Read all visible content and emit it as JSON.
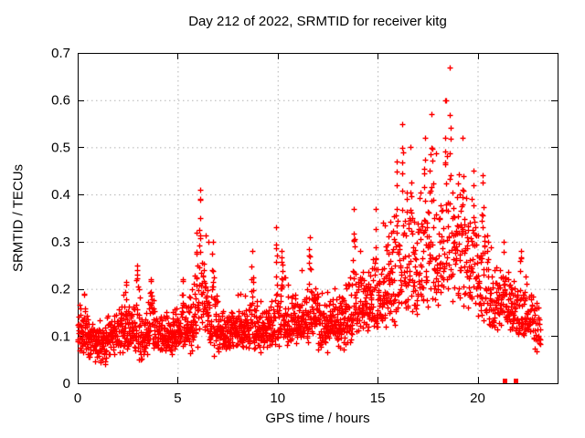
{
  "chart_data": {
    "type": "scatter",
    "title": "Day 212 of 2022, SRMTID for receiver kitg",
    "xlabel": "GPS time / hours",
    "ylabel": "SRMTID / TECUs",
    "xlim": [
      0,
      24
    ],
    "ylim": [
      0,
      0.7
    ],
    "xticks": [
      0,
      5,
      10,
      15,
      20
    ],
    "xtick_labels": [
      "0",
      "5",
      "10",
      "15",
      "20"
    ],
    "yticks": [
      0,
      0.1,
      0.2,
      0.3,
      0.4,
      0.5,
      0.6,
      0.7
    ],
    "ytick_labels": [
      "0",
      "0.1",
      "0.2",
      "0.3",
      "0.4",
      "0.5",
      "0.6",
      "0.7"
    ],
    "grid": "dotted, at every major tick, mirrored inward ticks on all four borders",
    "legend": "none",
    "marker": "plus",
    "point_color": "#ff0000",
    "grid_color": "#b4b4b4",
    "axis_color": "#000000",
    "background_color": "#ffffff",
    "x_data_range": [
      0,
      23.15
    ],
    "bands_schema": [
      "hour_start",
      "hour_end",
      "n_points",
      "y_low",
      "y_median",
      "y_high",
      "spike_pos_frac",
      "spike_y_max"
    ],
    "bands": [
      [
        0.0,
        0.5,
        58,
        0.05,
        0.1,
        0.18,
        null,
        null
      ],
      [
        0.5,
        1.0,
        58,
        0.04,
        0.09,
        0.14,
        null,
        null
      ],
      [
        1.0,
        1.5,
        58,
        0.025,
        0.08,
        0.13,
        null,
        null
      ],
      [
        1.5,
        2.0,
        58,
        0.05,
        0.1,
        0.16,
        null,
        null
      ],
      [
        2.0,
        2.5,
        58,
        0.06,
        0.11,
        0.18,
        0.8,
        0.215
      ],
      [
        2.5,
        3.0,
        58,
        0.06,
        0.11,
        0.19,
        0.95,
        0.25
      ],
      [
        3.0,
        3.5,
        58,
        0.04,
        0.1,
        0.18,
        null,
        null
      ],
      [
        3.5,
        4.0,
        58,
        0.06,
        0.11,
        0.19,
        0.3,
        0.22
      ],
      [
        4.0,
        4.5,
        58,
        0.06,
        0.1,
        0.16,
        null,
        null
      ],
      [
        4.5,
        5.0,
        58,
        0.05,
        0.1,
        0.17,
        null,
        null
      ],
      [
        5.0,
        5.5,
        58,
        0.07,
        0.11,
        0.18,
        0.5,
        0.22
      ],
      [
        5.5,
        6.0,
        58,
        0.05,
        0.12,
        0.22,
        0.9,
        0.32
      ],
      [
        6.0,
        6.5,
        55,
        0.1,
        0.16,
        0.3,
        0.25,
        0.41
      ],
      [
        6.5,
        7.0,
        55,
        0.05,
        0.13,
        0.24,
        0.5,
        0.3
      ],
      [
        7.0,
        7.5,
        58,
        0.06,
        0.11,
        0.16,
        null,
        null
      ],
      [
        7.5,
        8.0,
        58,
        0.06,
        0.11,
        0.16,
        null,
        null
      ],
      [
        8.0,
        8.5,
        58,
        0.07,
        0.11,
        0.17,
        null,
        null
      ],
      [
        8.5,
        9.0,
        58,
        0.07,
        0.12,
        0.19,
        0.45,
        0.28
      ],
      [
        9.0,
        9.5,
        58,
        0.06,
        0.11,
        0.16,
        null,
        null
      ],
      [
        9.5,
        10.0,
        58,
        0.07,
        0.12,
        0.19,
        0.85,
        0.33
      ],
      [
        10.0,
        10.5,
        58,
        0.07,
        0.12,
        0.2,
        0.4,
        0.28
      ],
      [
        10.5,
        11.0,
        58,
        0.08,
        0.12,
        0.2,
        null,
        null
      ],
      [
        11.0,
        11.5,
        58,
        0.08,
        0.13,
        0.22,
        null,
        null
      ],
      [
        11.5,
        12.0,
        58,
        0.07,
        0.14,
        0.24,
        0.2,
        0.31
      ],
      [
        12.0,
        12.5,
        58,
        0.05,
        0.12,
        0.2,
        null,
        null
      ],
      [
        12.5,
        13.0,
        58,
        0.06,
        0.12,
        0.2,
        null,
        null
      ],
      [
        13.0,
        13.5,
        58,
        0.06,
        0.13,
        0.22,
        null,
        null
      ],
      [
        13.5,
        14.0,
        58,
        0.08,
        0.14,
        0.25,
        0.6,
        0.37
      ],
      [
        14.0,
        14.5,
        55,
        0.09,
        0.15,
        0.26,
        null,
        null
      ],
      [
        14.5,
        15.0,
        55,
        0.1,
        0.16,
        0.3,
        0.8,
        0.37
      ],
      [
        15.0,
        15.5,
        50,
        0.1,
        0.18,
        0.32,
        null,
        null
      ],
      [
        15.5,
        16.0,
        50,
        0.11,
        0.2,
        0.38,
        0.9,
        0.47
      ],
      [
        16.0,
        16.5,
        48,
        0.12,
        0.22,
        0.42,
        0.5,
        0.55
      ],
      [
        16.5,
        17.0,
        48,
        0.12,
        0.22,
        0.4,
        0.3,
        0.5
      ],
      [
        17.0,
        17.5,
        48,
        0.13,
        0.24,
        0.45,
        0.7,
        0.52
      ],
      [
        17.5,
        18.0,
        48,
        0.14,
        0.26,
        0.48,
        0.4,
        0.57
      ],
      [
        18.0,
        18.5,
        48,
        0.15,
        0.28,
        0.5,
        0.8,
        0.6
      ],
      [
        18.5,
        19.0,
        48,
        0.15,
        0.3,
        0.52,
        0.25,
        0.67
      ],
      [
        19.0,
        19.5,
        48,
        0.13,
        0.25,
        0.45,
        0.5,
        0.52
      ],
      [
        19.5,
        20.0,
        48,
        0.12,
        0.22,
        0.38,
        0.6,
        0.45
      ],
      [
        20.0,
        20.5,
        50,
        0.12,
        0.2,
        0.35,
        0.5,
        0.44
      ],
      [
        20.5,
        21.0,
        50,
        0.1,
        0.17,
        0.28,
        null,
        null
      ],
      [
        21.0,
        21.5,
        52,
        0.1,
        0.16,
        0.26,
        0.6,
        0.3
      ],
      [
        21.5,
        22.0,
        52,
        0.09,
        0.15,
        0.24,
        null,
        null
      ],
      [
        22.0,
        22.5,
        52,
        0.08,
        0.13,
        0.22,
        0.3,
        0.28
      ],
      [
        22.5,
        23.15,
        52,
        0.06,
        0.12,
        0.2,
        null,
        null
      ]
    ],
    "special_points": [
      {
        "x": 21.37,
        "y": 0.005,
        "marker": "square"
      },
      {
        "x": 21.92,
        "y": 0.005,
        "marker": "square"
      }
    ]
  }
}
